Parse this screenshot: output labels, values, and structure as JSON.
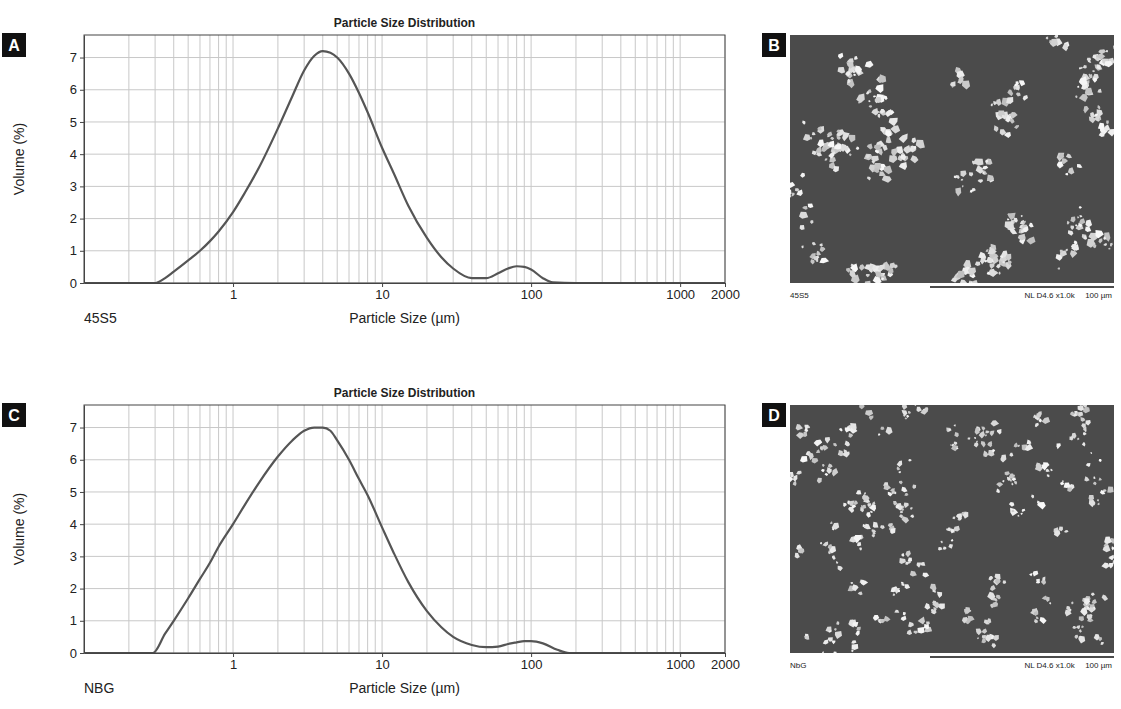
{
  "chart_data": [
    {
      "type": "line",
      "panel": "A",
      "title": "Particle Size Distribution",
      "x_label": "Particle Size (µm)",
      "y_label": "Volume (%)",
      "annotation": "45S5",
      "log": "x",
      "grid": true,
      "color": "#555555",
      "xlim": [
        0.1,
        2000
      ],
      "xticks": [
        1,
        10,
        100,
        1000,
        2000
      ],
      "minor_xticks": [
        0.2,
        0.3,
        0.4,
        0.5,
        0.6,
        0.7,
        0.8,
        0.9,
        2,
        3,
        4,
        5,
        6,
        7,
        8,
        9,
        20,
        30,
        40,
        50,
        60,
        70,
        80,
        90,
        200,
        300,
        400,
        500,
        600,
        700,
        800,
        900
      ],
      "ylim": [
        0,
        7.7
      ],
      "yticks": [
        0,
        1,
        2,
        3,
        4,
        5,
        6,
        7
      ],
      "x": [
        0.1,
        0.3,
        0.35,
        0.4,
        0.5,
        0.6,
        0.7,
        0.8,
        1,
        1.2,
        1.5,
        2,
        2.5,
        3,
        3.5,
        4,
        4.5,
        5,
        6,
        7,
        8,
        10,
        12,
        15,
        20,
        25,
        30,
        40,
        50,
        60,
        70,
        80,
        90,
        100,
        120,
        140,
        200,
        2000
      ],
      "values": [
        0,
        0,
        0.15,
        0.35,
        0.7,
        1.0,
        1.3,
        1.6,
        2.2,
        2.8,
        3.6,
        4.8,
        5.8,
        6.6,
        7.05,
        7.2,
        7.15,
        7.0,
        6.5,
        5.9,
        5.3,
        4.2,
        3.4,
        2.4,
        1.4,
        0.8,
        0.45,
        0.15,
        0.15,
        0.3,
        0.45,
        0.52,
        0.5,
        0.42,
        0.15,
        0.02,
        0,
        0
      ]
    },
    {
      "type": "line",
      "panel": "C",
      "title": "Particle Size Distribution",
      "x_label": "Particle Size (µm)",
      "y_label": "Volume (%)",
      "annotation": "NBG",
      "log": "x",
      "grid": true,
      "color": "#555555",
      "xlim": [
        0.1,
        2000
      ],
      "xticks": [
        1,
        10,
        100,
        1000,
        2000
      ],
      "minor_xticks": [
        0.2,
        0.3,
        0.4,
        0.5,
        0.6,
        0.7,
        0.8,
        0.9,
        2,
        3,
        4,
        5,
        6,
        7,
        8,
        9,
        20,
        30,
        40,
        50,
        60,
        70,
        80,
        90,
        200,
        300,
        400,
        500,
        600,
        700,
        800,
        900
      ],
      "ylim": [
        0,
        7.7
      ],
      "yticks": [
        0,
        1,
        2,
        3,
        4,
        5,
        6,
        7
      ],
      "x": [
        0.1,
        0.29,
        0.35,
        0.4,
        0.5,
        0.6,
        0.7,
        0.8,
        1,
        1.2,
        1.5,
        2,
        2.5,
        3,
        3.5,
        4,
        4.5,
        5,
        6,
        7,
        8,
        10,
        12,
        15,
        20,
        25,
        30,
        40,
        50,
        60,
        70,
        80,
        90,
        100,
        120,
        150,
        180,
        2000
      ],
      "values": [
        0,
        0,
        0.6,
        1.0,
        1.7,
        2.3,
        2.8,
        3.3,
        4.0,
        4.6,
        5.3,
        6.1,
        6.6,
        6.9,
        7.0,
        7.0,
        6.9,
        6.6,
        6.0,
        5.4,
        4.9,
        3.9,
        3.1,
        2.2,
        1.3,
        0.8,
        0.5,
        0.25,
        0.18,
        0.2,
        0.28,
        0.33,
        0.37,
        0.37,
        0.3,
        0.1,
        0,
        0
      ]
    }
  ],
  "images": [
    {
      "panel": "B",
      "caption": "45S5",
      "info": "NL D4.6 x1.0k",
      "scale_label": "100 µm"
    },
    {
      "panel": "D",
      "caption": "NbG",
      "info": "NL D4.6 x1.0k",
      "scale_label": "100 µm"
    }
  ]
}
